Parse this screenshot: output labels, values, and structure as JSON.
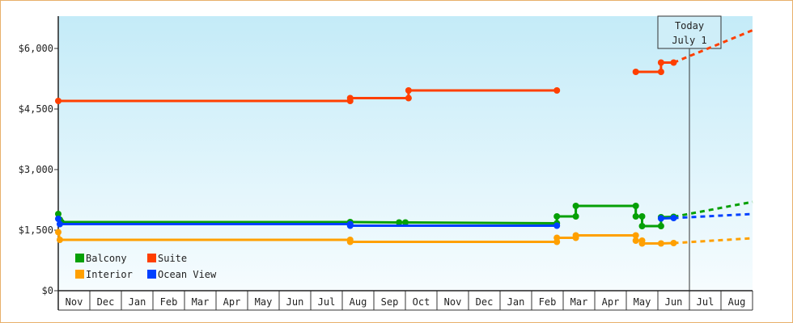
{
  "chart_data": {
    "type": "line",
    "title": "",
    "xlabel": "",
    "ylabel": "",
    "ylim": [
      0,
      6800
    ],
    "y_ticks": [
      "$0",
      "$1,500",
      "$3,000",
      "$4,500",
      "$6,000"
    ],
    "y_tick_values": [
      0,
      1500,
      3000,
      4500,
      6000
    ],
    "x_months": [
      "Nov",
      "Dec",
      "Jan",
      "Feb",
      "Mar",
      "Apr",
      "May",
      "Jun",
      "Jul",
      "Aug",
      "Sep",
      "Oct",
      "Nov",
      "Dec",
      "Jan",
      "Feb",
      "Mar",
      "Apr",
      "May",
      "Jun",
      "Jul",
      "Aug"
    ],
    "x_range_months": [
      0,
      22
    ],
    "today": {
      "line1": "Today",
      "line2": "July 1",
      "x": 20
    },
    "series": [
      {
        "name": "Suite",
        "color": "#ff3f00",
        "points": [
          [
            0,
            4700
          ],
          [
            9.25,
            4700
          ],
          [
            9.25,
            4770
          ],
          [
            11,
            4770
          ],
          [
            11.1,
            4770
          ],
          [
            11.1,
            4960
          ],
          [
            15.8,
            4960
          ]
        ],
        "points2": [
          [
            18.3,
            5420
          ],
          [
            19.1,
            5420
          ],
          [
            19.1,
            5650
          ],
          [
            19.5,
            5650
          ]
        ],
        "projection": [
          [
            19.5,
            5650
          ],
          [
            22,
            6450
          ]
        ]
      },
      {
        "name": "Balcony",
        "color": "#06a006",
        "points": [
          [
            0,
            1900
          ],
          [
            0.05,
            1760
          ],
          [
            0.1,
            1700
          ],
          [
            9.25,
            1700
          ],
          [
            9.25,
            1700
          ],
          [
            10.8,
            1690
          ],
          [
            11,
            1690
          ],
          [
            15.8,
            1670
          ],
          [
            15.8,
            1840
          ],
          [
            16.4,
            1840
          ],
          [
            16.4,
            2100
          ],
          [
            18.3,
            2100
          ],
          [
            18.3,
            1840
          ],
          [
            18.5,
            1840
          ],
          [
            18.5,
            1600
          ],
          [
            19.1,
            1600
          ],
          [
            19.1,
            1820
          ],
          [
            19.5,
            1830
          ]
        ],
        "projection": [
          [
            19.5,
            1830
          ],
          [
            22,
            2200
          ]
        ]
      },
      {
        "name": "Ocean View",
        "color": "#0040ff",
        "points": [
          [
            0,
            1780
          ],
          [
            0.05,
            1650
          ],
          [
            9.25,
            1650
          ],
          [
            9.25,
            1610
          ],
          [
            15.8,
            1610
          ]
        ],
        "points2": [
          [
            19.1,
            1790
          ],
          [
            19.5,
            1800
          ]
        ],
        "projection": [
          [
            19.5,
            1800
          ],
          [
            22,
            1900
          ]
        ]
      },
      {
        "name": "Interior",
        "color": "#ffa000",
        "points": [
          [
            0,
            1450
          ],
          [
            0.05,
            1260
          ],
          [
            9.25,
            1260
          ],
          [
            9.25,
            1210
          ],
          [
            15.8,
            1210
          ],
          [
            15.8,
            1310
          ],
          [
            16.4,
            1310
          ],
          [
            16.4,
            1370
          ],
          [
            18.3,
            1370
          ],
          [
            18.3,
            1240
          ],
          [
            18.5,
            1240
          ],
          [
            18.5,
            1170
          ],
          [
            19.1,
            1170
          ],
          [
            19.5,
            1180
          ]
        ],
        "projection": [
          [
            19.5,
            1180
          ],
          [
            22,
            1300
          ]
        ]
      }
    ],
    "legend": [
      {
        "name": "Balcony",
        "color": "#06a006"
      },
      {
        "name": "Suite",
        "color": "#ff3f00"
      },
      {
        "name": "Interior",
        "color": "#ffa000"
      },
      {
        "name": "Ocean View",
        "color": "#0040ff"
      }
    ],
    "legend_position": "bottom-left",
    "grid": false
  }
}
